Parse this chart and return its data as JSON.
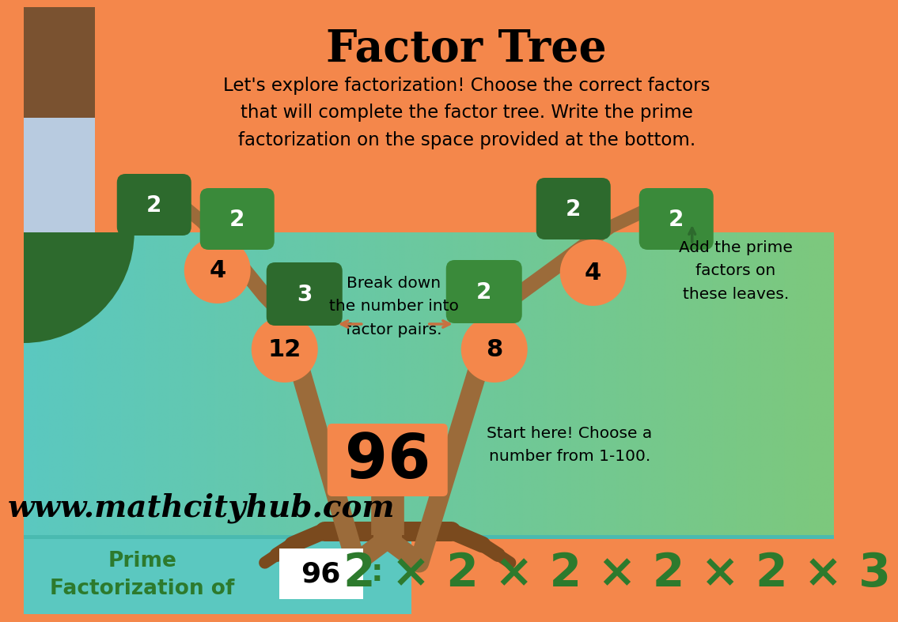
{
  "title": "Factor Tree",
  "subtitle": "Let's explore factorization! Choose the correct factors\nthat will complete the factor tree. Write the prime\nfactorization on the space provided at the bottom.",
  "bg_top": "#F4874B",
  "tree_bg_left": "#5BC8C0",
  "tree_bg_right": "#7DC87D",
  "brown": "#9B6B3A",
  "brown_dark": "#7A4A1E",
  "orange_circle": "#F4874B",
  "dark_green_leaf": "#2D6A2D",
  "medium_green_leaf": "#3A8A3A",
  "footer_left_bg": "#5BC8C0",
  "footer_right_bg": "#F4874B",
  "footer_text_color": "#2D7A2D",
  "formula_color": "#2D7A2D",
  "root_number": "96",
  "prime_factorization": "2 × 2 × 2 × 2 × 2 × 3",
  "of_number": "96",
  "website": "www.mathcityhub.com",
  "break_down_text": "Break down\nthe number into\nfactor pairs.",
  "add_prime_text": "Add the prime\nfactors on\nthese leaves.",
  "start_text": "Start here! Choose a\nnumber from 1-100."
}
